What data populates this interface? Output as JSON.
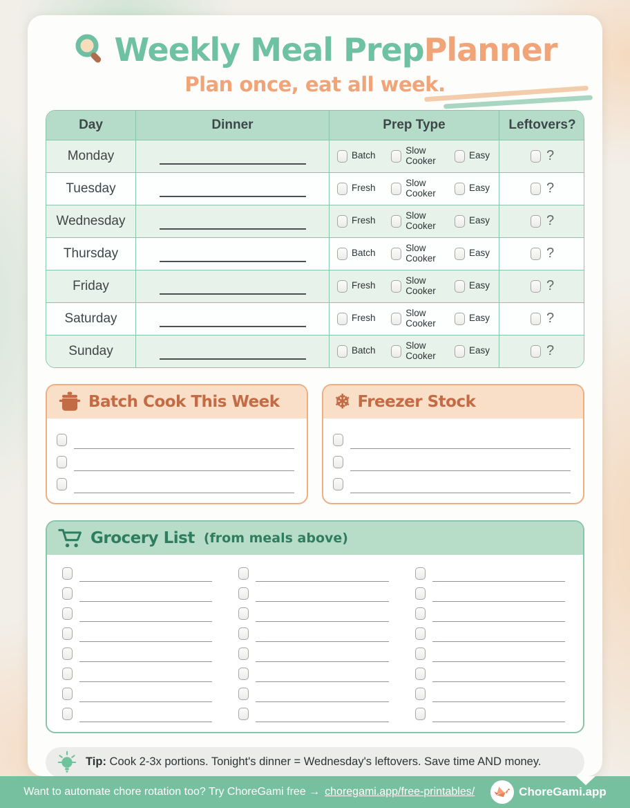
{
  "page_title": "Weekly Meal Prep Planner",
  "header": {
    "icon": "magnifier-icon",
    "title_main": "Weekly Meal Prep",
    "title_accent": "Planner",
    "subtitle": "Plan once, eat all week."
  },
  "meal_table": {
    "columns": [
      "Day",
      "Dinner",
      "Prep Type",
      "Leftovers?"
    ],
    "leftover_mark": "?",
    "rows": [
      {
        "day": "Monday",
        "prep_options": [
          "Batch",
          "Slow Cooker",
          "Easy"
        ]
      },
      {
        "day": "Tuesday",
        "prep_options": [
          "Fresh",
          "Slow Cooker",
          "Easy"
        ]
      },
      {
        "day": "Wednesday",
        "prep_options": [
          "Fresh",
          "Slow Cooker",
          "Easy"
        ]
      },
      {
        "day": "Thursday",
        "prep_options": [
          "Batch",
          "Slow Cooker",
          "Easy"
        ]
      },
      {
        "day": "Friday",
        "prep_options": [
          "Fresh",
          "Slow Cooker",
          "Easy"
        ]
      },
      {
        "day": "Saturday",
        "prep_options": [
          "Fresh",
          "Slow Cooker",
          "Easy"
        ]
      },
      {
        "day": "Sunday",
        "prep_options": [
          "Batch",
          "Slow Cooker",
          "Easy"
        ]
      }
    ]
  },
  "batch_box": {
    "icon": "pot-icon",
    "title": "Batch Cook This Week",
    "line_count": 3
  },
  "freezer_box": {
    "icon": "snowflake-icon",
    "title": "Freezer Stock",
    "line_count": 3,
    "snowflake_glyph": "❄"
  },
  "grocery": {
    "icon": "cart-icon",
    "title": "Grocery List",
    "title_note": "(from meals above)",
    "column_count": 3,
    "rows_per_column": 8
  },
  "tip": {
    "icon": "lightbulb-icon",
    "label": "Tip:",
    "text": "Cook 2-3x portions. Tonight's dinner = Wednesday's leftovers. Save time AND money."
  },
  "footer": {
    "message": "Want to automate chore rotation too? Try ChoreGami free →",
    "link_text": "choregami.app/free-printables/",
    "logo": "origami-crane-logo",
    "brand": "ChoreGami.app"
  },
  "colors": {
    "teal_title": "#6ec1a2",
    "orange_accent": "#f0a478",
    "table_header_bg": "#b5dcc8",
    "table_border": "#8ac4aa",
    "row_alt_bg": "#e6f2ea",
    "peach_border": "#efad80",
    "peach_header_bg": "#fadfc8",
    "terracotta_text": "#c26b45",
    "grocery_title_text": "#2f7d5f",
    "footer_bg": "#76bf9f",
    "tip_bg": "#ececea"
  }
}
